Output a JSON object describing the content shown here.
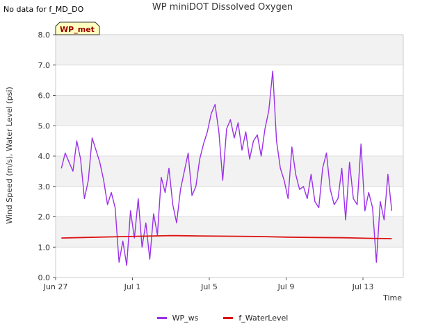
{
  "header": {
    "no_data_note": "No data for f_MD_DO",
    "title": "WP miniDOT Dissolved Oxygen"
  },
  "badge": {
    "label": "WP_met",
    "bg": "#ffffc0",
    "text_color": "#990000"
  },
  "chart_data": {
    "type": "line",
    "title": "WP miniDOT Dissolved Oxygen",
    "xlabel": "Time",
    "ylabel": "Wind Speed (m/s), Water Level (psi)",
    "ylim": [
      0,
      8
    ],
    "y_ticks": [
      "0.0",
      "1.0",
      "2.0",
      "3.0",
      "4.0",
      "5.0",
      "6.0",
      "7.0",
      "8.0"
    ],
    "x_range_days": [
      0,
      18.1
    ],
    "x_ticks": [
      {
        "day": 0,
        "label": "Jun 27"
      },
      {
        "day": 4,
        "label": "Jul 1"
      },
      {
        "day": 8,
        "label": "Jul 5"
      },
      {
        "day": 12,
        "label": "Jul 9"
      },
      {
        "day": 16,
        "label": "Jul 13"
      }
    ],
    "grid": true,
    "legend_position": "bottom",
    "series": [
      {
        "name": "WP_ws",
        "color": "#9b30e8",
        "x": [
          0.3,
          0.5,
          0.7,
          0.9,
          1.1,
          1.3,
          1.5,
          1.7,
          1.9,
          2.1,
          2.3,
          2.5,
          2.7,
          2.9,
          3.1,
          3.3,
          3.5,
          3.7,
          3.9,
          4.1,
          4.3,
          4.5,
          4.7,
          4.9,
          5.1,
          5.3,
          5.5,
          5.7,
          5.9,
          6.1,
          6.3,
          6.5,
          6.7,
          6.9,
          7.1,
          7.3,
          7.5,
          7.7,
          7.9,
          8.1,
          8.3,
          8.5,
          8.7,
          8.9,
          9.1,
          9.3,
          9.5,
          9.7,
          9.9,
          10.1,
          10.3,
          10.5,
          10.7,
          10.9,
          11.1,
          11.3,
          11.5,
          11.7,
          11.9,
          12.1,
          12.3,
          12.5,
          12.7,
          12.9,
          13.1,
          13.3,
          13.5,
          13.7,
          13.9,
          14.1,
          14.3,
          14.5,
          14.7,
          14.9,
          15.1,
          15.3,
          15.5,
          15.7,
          15.9,
          16.1,
          16.3,
          16.5,
          16.7,
          16.9,
          17.1,
          17.3,
          17.5
        ],
        "values": [
          3.6,
          4.1,
          3.8,
          3.5,
          4.5,
          3.9,
          2.6,
          3.2,
          4.6,
          4.2,
          3.8,
          3.2,
          2.4,
          2.8,
          2.3,
          0.5,
          1.2,
          0.4,
          2.2,
          1.3,
          2.6,
          1.0,
          1.8,
          0.6,
          2.1,
          1.4,
          3.3,
          2.8,
          3.6,
          2.4,
          1.8,
          2.9,
          3.5,
          4.1,
          2.7,
          3.0,
          3.9,
          4.4,
          4.8,
          5.4,
          5.7,
          4.8,
          3.2,
          4.9,
          5.2,
          4.6,
          5.1,
          4.2,
          4.8,
          3.9,
          4.5,
          4.7,
          4.0,
          4.9,
          5.5,
          6.8,
          4.5,
          3.6,
          3.2,
          2.6,
          4.3,
          3.4,
          2.9,
          3.0,
          2.6,
          3.4,
          2.5,
          2.3,
          3.6,
          4.1,
          2.9,
          2.4,
          2.6,
          3.6,
          1.9,
          3.8,
          2.6,
          2.4,
          4.4,
          2.2,
          2.8,
          2.3,
          0.5,
          2.5,
          1.9,
          3.4,
          2.2
        ],
        "stroke_width": 1.4
      },
      {
        "name": "f_WaterLevel",
        "color": "#dd1111",
        "x": [
          0.3,
          1.5,
          3.0,
          4.5,
          6.0,
          7.5,
          9.0,
          10.5,
          12.0,
          13.5,
          15.0,
          16.5,
          17.5
        ],
        "values": [
          1.3,
          1.32,
          1.34,
          1.36,
          1.38,
          1.37,
          1.36,
          1.35,
          1.33,
          1.32,
          1.31,
          1.29,
          1.28
        ],
        "stroke_width": 1.8
      }
    ]
  }
}
